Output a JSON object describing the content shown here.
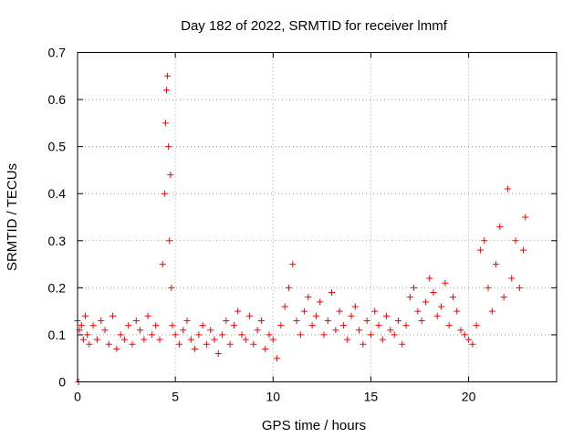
{
  "chart_data": {
    "type": "scatter",
    "title": "Day 182 of 2022, SRMTID for receiver lmmf",
    "xlabel": "GPS time / hours",
    "ylabel": "SRMTID / TECUs",
    "xlim": [
      0,
      24.5
    ],
    "ylim": [
      0,
      0.7
    ],
    "grid": true,
    "marker": "+",
    "colors": {
      "series": "#ff0000",
      "frame": "#000000",
      "grid": "#a0a0a0"
    },
    "x_ticks": [
      0,
      5,
      10,
      15,
      20
    ],
    "x_tick_labels": [
      "0",
      "5",
      "10",
      "15",
      "20"
    ],
    "y_ticks": [
      0,
      0.1,
      0.2,
      0.3,
      0.4,
      0.5,
      0.6,
      0.7
    ],
    "y_tick_labels": [
      "0",
      "0.1",
      "0.2",
      "0.3",
      "0.4",
      "0.5",
      "0.6",
      "0.7"
    ],
    "series": [
      {
        "name": "SRMTID",
        "x": [
          0.0,
          0.05,
          0.1,
          0.2,
          0.3,
          0.4,
          0.5,
          0.6,
          0.8,
          1.0,
          1.2,
          1.4,
          1.6,
          1.8,
          2.0,
          2.2,
          2.4,
          2.6,
          2.8,
          3.0,
          3.2,
          3.4,
          3.6,
          3.8,
          4.0,
          4.2,
          4.35,
          4.45,
          4.5,
          4.55,
          4.6,
          4.65,
          4.7,
          4.75,
          4.8,
          4.85,
          5.0,
          5.2,
          5.4,
          5.6,
          5.8,
          6.0,
          6.2,
          6.4,
          6.6,
          6.8,
          7.0,
          7.2,
          7.4,
          7.6,
          7.8,
          8.0,
          8.2,
          8.4,
          8.6,
          8.8,
          9.0,
          9.2,
          9.4,
          9.6,
          9.8,
          10.0,
          10.2,
          10.4,
          10.6,
          10.8,
          11.0,
          11.2,
          11.4,
          11.6,
          11.8,
          12.0,
          12.2,
          12.4,
          12.6,
          12.8,
          13.0,
          13.2,
          13.4,
          13.6,
          13.8,
          14.0,
          14.2,
          14.4,
          14.6,
          14.8,
          15.0,
          15.2,
          15.4,
          15.6,
          15.8,
          16.0,
          16.2,
          16.4,
          16.6,
          16.8,
          17.0,
          17.2,
          17.4,
          17.6,
          17.8,
          18.0,
          18.2,
          18.4,
          18.6,
          18.8,
          19.0,
          19.2,
          19.4,
          19.6,
          19.8,
          20.0,
          20.2,
          20.4,
          20.6,
          20.8,
          21.0,
          21.2,
          21.4,
          21.6,
          21.8,
          22.0,
          22.2,
          22.4,
          22.6,
          22.8,
          22.9
        ],
        "y": [
          0.13,
          0.0,
          0.11,
          0.12,
          0.09,
          0.14,
          0.1,
          0.08,
          0.12,
          0.09,
          0.13,
          0.11,
          0.08,
          0.14,
          0.07,
          0.1,
          0.09,
          0.12,
          0.08,
          0.13,
          0.11,
          0.09,
          0.14,
          0.1,
          0.12,
          0.09,
          0.25,
          0.4,
          0.55,
          0.62,
          0.65,
          0.5,
          0.3,
          0.44,
          0.2,
          0.12,
          0.1,
          0.08,
          0.11,
          0.13,
          0.09,
          0.07,
          0.1,
          0.12,
          0.08,
          0.11,
          0.09,
          0.06,
          0.1,
          0.13,
          0.08,
          0.12,
          0.15,
          0.1,
          0.09,
          0.14,
          0.08,
          0.11,
          0.13,
          0.07,
          0.1,
          0.09,
          0.05,
          0.12,
          0.16,
          0.2,
          0.25,
          0.13,
          0.1,
          0.15,
          0.18,
          0.12,
          0.14,
          0.17,
          0.1,
          0.13,
          0.19,
          0.11,
          0.15,
          0.12,
          0.09,
          0.14,
          0.16,
          0.11,
          0.08,
          0.13,
          0.1,
          0.15,
          0.12,
          0.09,
          0.14,
          0.11,
          0.1,
          0.13,
          0.08,
          0.12,
          0.18,
          0.2,
          0.15,
          0.13,
          0.17,
          0.22,
          0.19,
          0.14,
          0.16,
          0.21,
          0.12,
          0.18,
          0.15,
          0.11,
          0.1,
          0.09,
          0.08,
          0.12,
          0.28,
          0.3,
          0.2,
          0.15,
          0.25,
          0.33,
          0.18,
          0.41,
          0.22,
          0.3,
          0.2,
          0.28,
          0.35
        ]
      }
    ]
  }
}
